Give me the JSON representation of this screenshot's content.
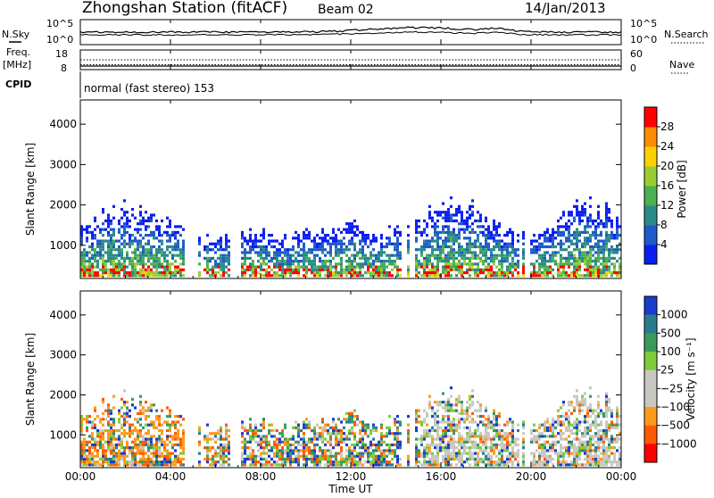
{
  "header": {
    "station": "Zhongshan Station (fitACF)",
    "beam": "Beam 02",
    "date": "14/Jan/2013"
  },
  "summary_panel": {
    "left_labels": {
      "nsky": "N.Sky",
      "freq_line1": "Freq.",
      "freq_line2": "[MHz]",
      "cpid": "CPID"
    },
    "right_labels": {
      "nsearch": "N.Search",
      "nave": "Nave"
    },
    "noise_ticks": {
      "top": "10^5",
      "bottom": "10^0"
    },
    "freq_ticks": {
      "top": "18",
      "bottom": "8"
    },
    "nave_ticks": {
      "top": "60",
      "bottom": "0"
    },
    "cpid_text": "normal (fast stereo) 153",
    "freq_value_mhz": 10.5,
    "nave_value": 30
  },
  "chart_data": [
    {
      "type": "heatmap",
      "name": "power",
      "ylabel": "Slant Range [km]",
      "xlabel": "Time UT",
      "x_ticks": [
        "00:00",
        "04:00",
        "08:00",
        "12:00",
        "16:00",
        "20:00",
        "00:00"
      ],
      "x_range_hours": [
        0,
        24
      ],
      "ylim": [
        180,
        4600
      ],
      "y_ticks": [
        1000,
        2000,
        3000,
        4000
      ],
      "colorbar": {
        "label": "Power [dB]",
        "ticks": [
          "4",
          "8",
          "12",
          "16",
          "20",
          "24",
          "28"
        ],
        "colors": [
          "#0a1ef0",
          "#1e5ac8",
          "#2a8a8a",
          "#4caf50",
          "#9acd32",
          "#ffd000",
          "#ff8c00",
          "#ff0000"
        ]
      }
    },
    {
      "type": "heatmap",
      "name": "velocity",
      "ylabel": "Slant Range [km]",
      "xlabel": "Time UT",
      "x_ticks": [
        "00:00",
        "04:00",
        "08:00",
        "12:00",
        "16:00",
        "20:00",
        "00:00"
      ],
      "x_range_hours": [
        0,
        24
      ],
      "ylim": [
        180,
        4600
      ],
      "y_ticks": [
        1000,
        2000,
        3000,
        4000
      ],
      "colorbar": {
        "label": "Velocity [m s⁻¹]",
        "ticks": [
          "1000",
          "500",
          "100",
          "25",
          "−25",
          "−100",
          "−500",
          "−1000"
        ],
        "colors": [
          "#1a3ccc",
          "#2b7b8f",
          "#3a9a5c",
          "#7ccc3a",
          "#c8c8c0",
          "#c8c8c0",
          "#ff9a1a",
          "#ff5a00",
          "#ff0000"
        ]
      }
    }
  ]
}
